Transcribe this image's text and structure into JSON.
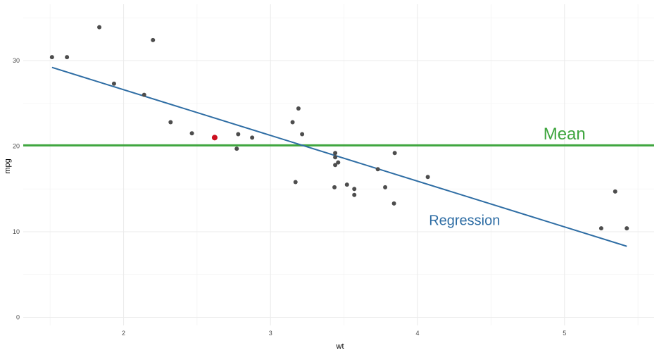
{
  "chart_data": {
    "type": "scatter",
    "xlabel": "wt",
    "ylabel": "mpg",
    "xlim": [
      1.5,
      5.45
    ],
    "ylim": [
      0,
      35
    ],
    "x_ticks": [
      "2",
      "3",
      "4",
      "5"
    ],
    "y_ticks": [
      "0",
      "10",
      "20",
      "30"
    ],
    "grid": true,
    "points": [
      {
        "x": 2.62,
        "y": 21.0
      },
      {
        "x": 2.875,
        "y": 21.0
      },
      {
        "x": 2.32,
        "y": 22.8
      },
      {
        "x": 3.215,
        "y": 21.4
      },
      {
        "x": 3.44,
        "y": 18.7
      },
      {
        "x": 3.46,
        "y": 18.1
      },
      {
        "x": 3.57,
        "y": 14.3
      },
      {
        "x": 3.19,
        "y": 24.4
      },
      {
        "x": 3.15,
        "y": 22.8
      },
      {
        "x": 3.44,
        "y": 19.2
      },
      {
        "x": 3.44,
        "y": 17.8
      },
      {
        "x": 4.07,
        "y": 16.4
      },
      {
        "x": 3.73,
        "y": 17.3
      },
      {
        "x": 3.78,
        "y": 15.2
      },
      {
        "x": 5.25,
        "y": 10.4
      },
      {
        "x": 5.424,
        "y": 10.4
      },
      {
        "x": 5.345,
        "y": 14.7
      },
      {
        "x": 2.2,
        "y": 32.4
      },
      {
        "x": 1.615,
        "y": 30.4
      },
      {
        "x": 1.835,
        "y": 33.9
      },
      {
        "x": 2.465,
        "y": 21.5
      },
      {
        "x": 3.52,
        "y": 15.5
      },
      {
        "x": 3.435,
        "y": 15.2
      },
      {
        "x": 3.84,
        "y": 13.3
      },
      {
        "x": 3.845,
        "y": 19.2
      },
      {
        "x": 1.935,
        "y": 27.3
      },
      {
        "x": 2.14,
        "y": 26.0
      },
      {
        "x": 1.513,
        "y": 30.4
      },
      {
        "x": 3.17,
        "y": 15.8
      },
      {
        "x": 2.77,
        "y": 19.7
      },
      {
        "x": 3.57,
        "y": 15.0
      },
      {
        "x": 2.78,
        "y": 21.4
      }
    ],
    "highlight": {
      "x": 2.62,
      "y": 21.0
    },
    "mean_line": {
      "y": 20.09,
      "label": "Mean"
    },
    "regression_line": {
      "x": [
        1.513,
        5.424
      ],
      "y": [
        29.2,
        8.3
      ],
      "label": "Regression"
    },
    "annotations": [
      {
        "text": "Mean",
        "x": 5.0,
        "y": 20.8
      },
      {
        "text": "Regression",
        "x": 4.32,
        "y": 10.8
      }
    ]
  },
  "colors": {
    "points": "#4d4d4d",
    "highlight": "#cc1020",
    "mean": "#3ea53e",
    "regression": "#2e6da4",
    "grid_major": "#ebebeb",
    "grid_minor": "#f3f3f3"
  }
}
